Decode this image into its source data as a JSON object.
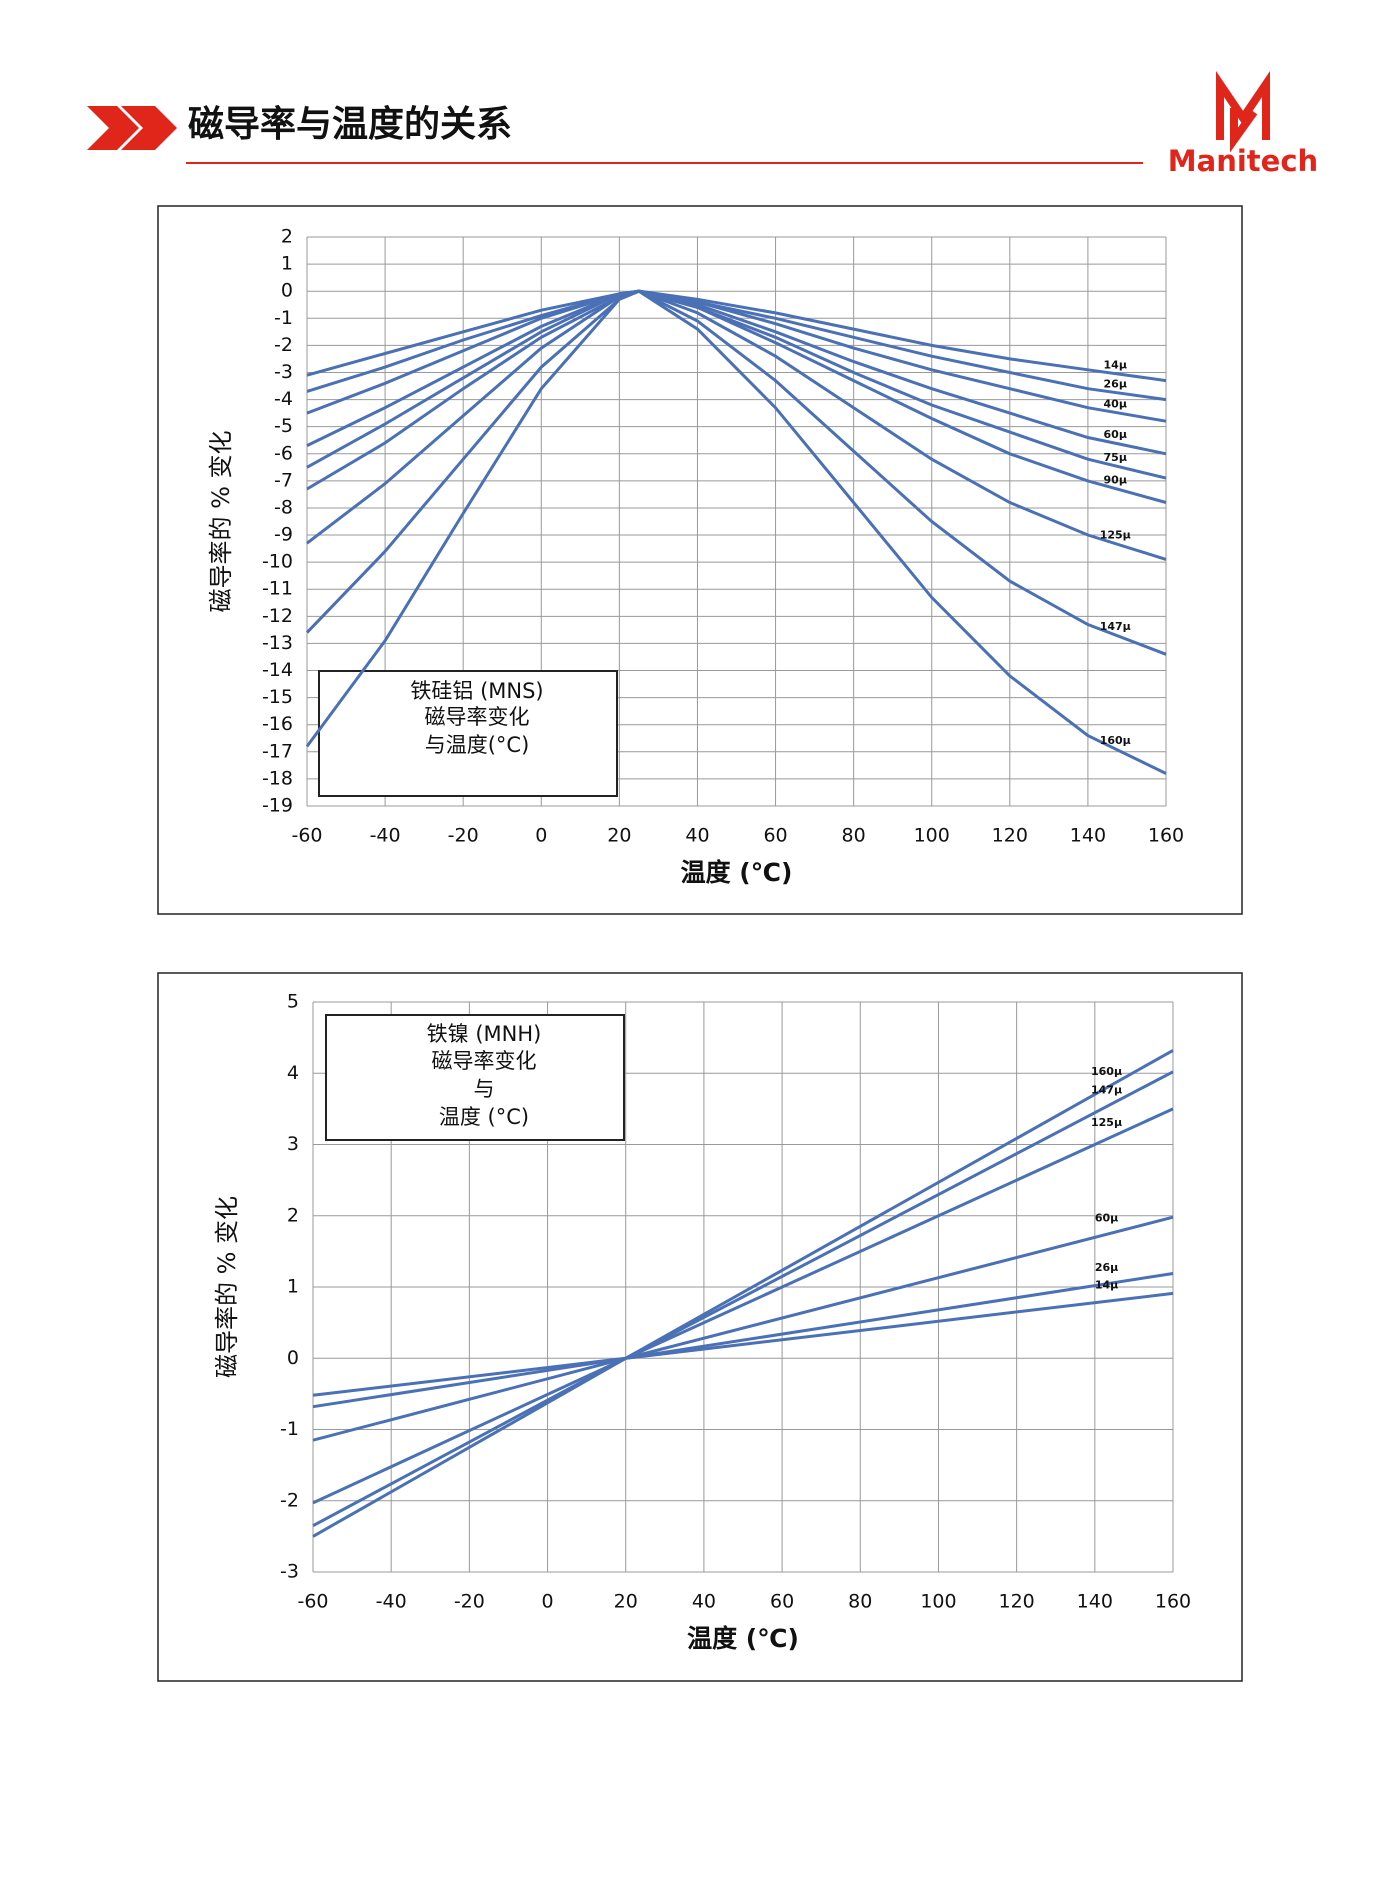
{
  "header": {
    "title": "磁导率与温度的关系",
    "logo": "Manitech"
  },
  "chart_data": [
    {
      "type": "line",
      "x_label": "温度 (℃)",
      "y_label": "磁导率的 % 变化",
      "annotation": [
        "铁硅铝 (MNS)",
        "磁导率变化",
        "与温度(°C)"
      ],
      "x": [
        -60,
        -40,
        -20,
        0,
        20,
        25,
        40,
        60,
        80,
        100,
        120,
        140,
        160
      ],
      "xlim": [
        -60,
        160
      ],
      "xticks": [
        -60,
        -40,
        -20,
        0,
        20,
        40,
        60,
        80,
        100,
        120,
        140,
        160
      ],
      "ylim": [
        -19,
        2
      ],
      "yticks": [
        -19,
        -18,
        -17,
        -16,
        -15,
        -14,
        -13,
        -12,
        -11,
        -10,
        -9,
        -8,
        -7,
        -6,
        -5,
        -4,
        -3,
        -2,
        -1,
        0,
        1,
        2
      ],
      "grid": true,
      "series": [
        {
          "name": "14μ",
          "color": "#4a70b5",
          "values": [
            -3.1,
            -2.3,
            -1.5,
            -0.7,
            -0.1,
            0,
            -0.3,
            -0.8,
            -1.4,
            -2.0,
            -2.5,
            -2.9,
            -3.3
          ]
        },
        {
          "name": "26μ",
          "color": "#4a70b5",
          "values": [
            -3.7,
            -2.8,
            -1.8,
            -0.9,
            -0.1,
            0,
            -0.4,
            -1.0,
            -1.7,
            -2.4,
            -3.0,
            -3.6,
            -4.0
          ]
        },
        {
          "name": "40μ",
          "color": "#4a70b5",
          "values": [
            -4.5,
            -3.4,
            -2.2,
            -1.0,
            -0.1,
            0,
            -0.4,
            -1.2,
            -2.1,
            -2.9,
            -3.6,
            -4.3,
            -4.8
          ]
        },
        {
          "name": "60μ",
          "color": "#4a70b5",
          "values": [
            -5.7,
            -4.3,
            -2.8,
            -1.3,
            -0.1,
            0,
            -0.5,
            -1.5,
            -2.6,
            -3.6,
            -4.5,
            -5.4,
            -6.0
          ]
        },
        {
          "name": "75μ",
          "color": "#4a70b5",
          "values": [
            -6.5,
            -4.9,
            -3.2,
            -1.5,
            -0.1,
            0,
            -0.6,
            -1.7,
            -3.0,
            -4.2,
            -5.2,
            -6.2,
            -6.9
          ]
        },
        {
          "name": "90μ",
          "color": "#4a70b5",
          "values": [
            -7.3,
            -5.6,
            -3.6,
            -1.7,
            -0.2,
            0,
            -0.6,
            -1.9,
            -3.3,
            -4.7,
            -6.0,
            -7.0,
            -7.8
          ]
        },
        {
          "name": "125μ",
          "color": "#4a70b5",
          "values": [
            -9.3,
            -7.1,
            -4.6,
            -2.1,
            -0.2,
            0,
            -0.8,
            -2.4,
            -4.3,
            -6.2,
            -7.8,
            -9.0,
            -9.9
          ]
        },
        {
          "name": "147μ",
          "color": "#4a70b5",
          "values": [
            -12.6,
            -9.6,
            -6.2,
            -2.8,
            -0.3,
            0,
            -1.1,
            -3.3,
            -5.9,
            -8.5,
            -10.7,
            -12.3,
            -13.4
          ]
        },
        {
          "name": "160μ",
          "color": "#4a70b5",
          "values": [
            -16.8,
            -12.9,
            -8.2,
            -3.6,
            -0.3,
            0,
            -1.4,
            -4.3,
            -7.8,
            -11.3,
            -14.2,
            -16.4,
            -17.8
          ]
        }
      ]
    },
    {
      "type": "line",
      "x_label": "温度 (℃)",
      "y_label": "磁导率的 % 变化",
      "annotation": [
        "铁镍 (MNH)",
        "磁导率变化",
        "与",
        "温度 (°C)"
      ],
      "x": [
        -60,
        20,
        160
      ],
      "xlim": [
        -60,
        160
      ],
      "xticks": [
        -60,
        -40,
        -20,
        0,
        20,
        40,
        60,
        80,
        100,
        120,
        140,
        160
      ],
      "ylim": [
        -3,
        5
      ],
      "yticks": [
        -3,
        -2,
        -1,
        0,
        1,
        2,
        3,
        4,
        5
      ],
      "grid": true,
      "series": [
        {
          "name": "160μ",
          "color": "#4a70b5",
          "values": [
            -2.5,
            0,
            4.32
          ]
        },
        {
          "name": "147μ",
          "color": "#4a70b5",
          "values": [
            -2.35,
            0,
            4.02
          ]
        },
        {
          "name": "125μ",
          "color": "#4a70b5",
          "values": [
            -2.03,
            0,
            3.5
          ]
        },
        {
          "name": "60μ",
          "color": "#4a70b5",
          "values": [
            -1.15,
            0,
            1.98
          ]
        },
        {
          "name": "26μ",
          "color": "#4a70b5",
          "values": [
            -0.68,
            0,
            1.19
          ]
        },
        {
          "name": "14μ",
          "color": "#4a70b5",
          "values": [
            -0.52,
            0,
            0.91
          ]
        }
      ]
    }
  ]
}
